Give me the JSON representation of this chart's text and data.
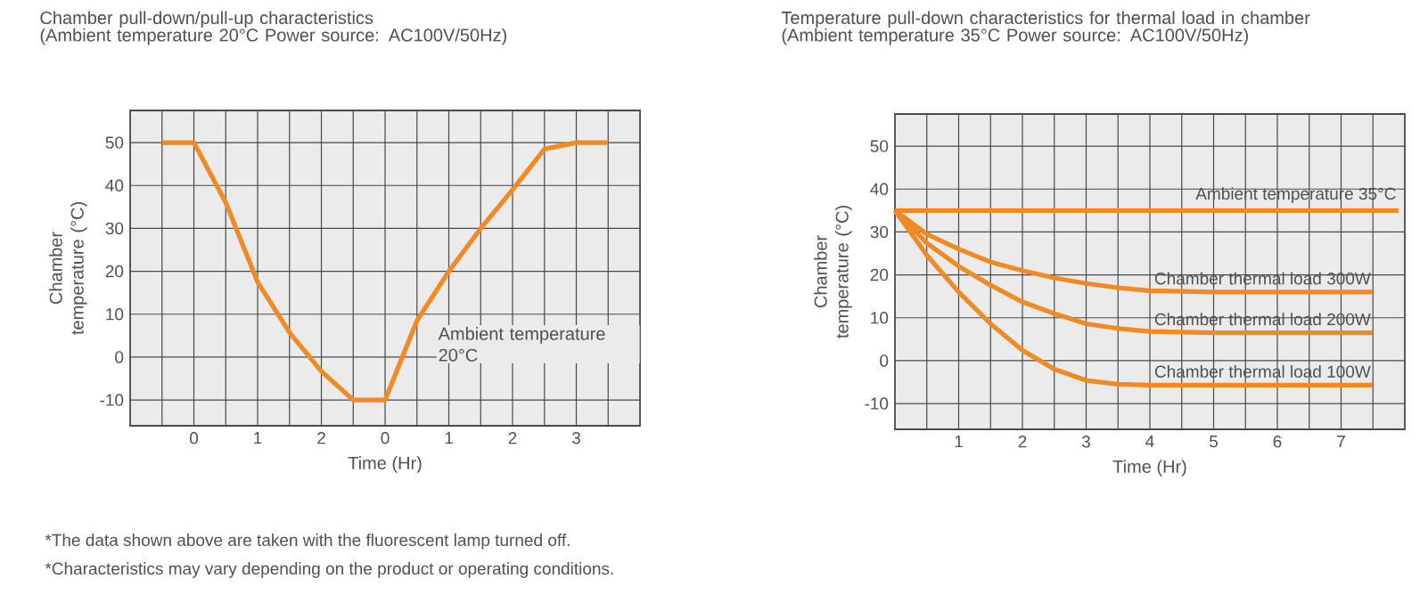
{
  "chart_data": [
    {
      "type": "line",
      "title": "Chamber pull-down/pull-up characteristics",
      "subtitle": "(Ambient temperature 20°C Power source: AC100V/50Hz)",
      "xlabel": "Time (Hr)",
      "ylabel": "Chamber temperature (°C)",
      "categories": [
        null,
        "0",
        null,
        "1",
        null,
        "2",
        null,
        "0",
        null,
        "1",
        null,
        "2",
        null,
        "3",
        null
      ],
      "values": [
        50,
        50,
        36,
        17.5,
        5.7,
        -3.3,
        -10,
        -10,
        8.5,
        20,
        30,
        39,
        48.5,
        50,
        50
      ],
      "color": "#f08a24",
      "ylim": [
        -16,
        57.5
      ],
      "yticks": [
        -10,
        0,
        10,
        20,
        30,
        40,
        50
      ],
      "grid": true,
      "annotations": [
        "Ambient temperature 20°C",
        "*The data shown above are taken with the fluorescent lamp turned off.",
        "*Characteristics may vary depending on the product or operating conditions."
      ]
    },
    {
      "type": "line",
      "title": "Temperature pull-down characteristics for thermal load in chamber",
      "subtitle": "(Ambient temperature 35°C  Power source: AC100V/50Hz)",
      "xlabel": "Time (Hr)",
      "ylabel": "Chamber temperature (°C)",
      "series": [
        {
          "name": "Ambient temperature 35°C",
          "color": "#f08a24",
          "x": [
            0,
            7.9
          ],
          "values": [
            35,
            35
          ]
        },
        {
          "name": "Chamber thermal load 300W",
          "color": "#f08a24",
          "x": [
            0,
            0.5,
            1,
            1.5,
            2,
            2.5,
            3,
            3.5,
            4,
            5,
            7.5
          ],
          "values": [
            35,
            29.5,
            26,
            23,
            21,
            19.3,
            18,
            17,
            16.3,
            16,
            16
          ]
        },
        {
          "name": "Chamber thermal load 200W",
          "color": "#f08a24",
          "x": [
            0,
            0.5,
            1,
            1.5,
            2,
            2.5,
            3,
            3.5,
            4,
            5,
            7.5
          ],
          "values": [
            35,
            27.4,
            22,
            17.6,
            13.7,
            11,
            8.6,
            7.5,
            6.8,
            6.5,
            6.5
          ]
        },
        {
          "name": "Chamber thermal load 100W",
          "color": "#f08a24",
          "x": [
            0,
            0.5,
            1,
            1.5,
            2,
            2.5,
            3,
            3.5,
            4,
            7.5
          ],
          "values": [
            35,
            24.6,
            16,
            8.6,
            2.4,
            -2,
            -4.6,
            -5.5,
            -5.7,
            -5.7
          ]
        }
      ],
      "xlim": [
        0,
        8
      ],
      "ylim": [
        -16,
        57.5
      ],
      "xticks": [
        {
          "value": 0.5,
          "label": null
        },
        1,
        {
          "value": 1.5,
          "label": null
        },
        2,
        {
          "value": 2.5,
          "label": null
        },
        3,
        {
          "value": 3.5,
          "label": null
        },
        4,
        {
          "value": 4.5,
          "label": null
        },
        5,
        {
          "value": 5.5,
          "label": null
        },
        6,
        {
          "value": 6.5,
          "label": null
        },
        7,
        {
          "value": 7.5,
          "label": null
        }
      ],
      "yticks": [
        -10,
        0,
        10,
        20,
        30,
        40,
        50
      ],
      "grid": true
    }
  ]
}
